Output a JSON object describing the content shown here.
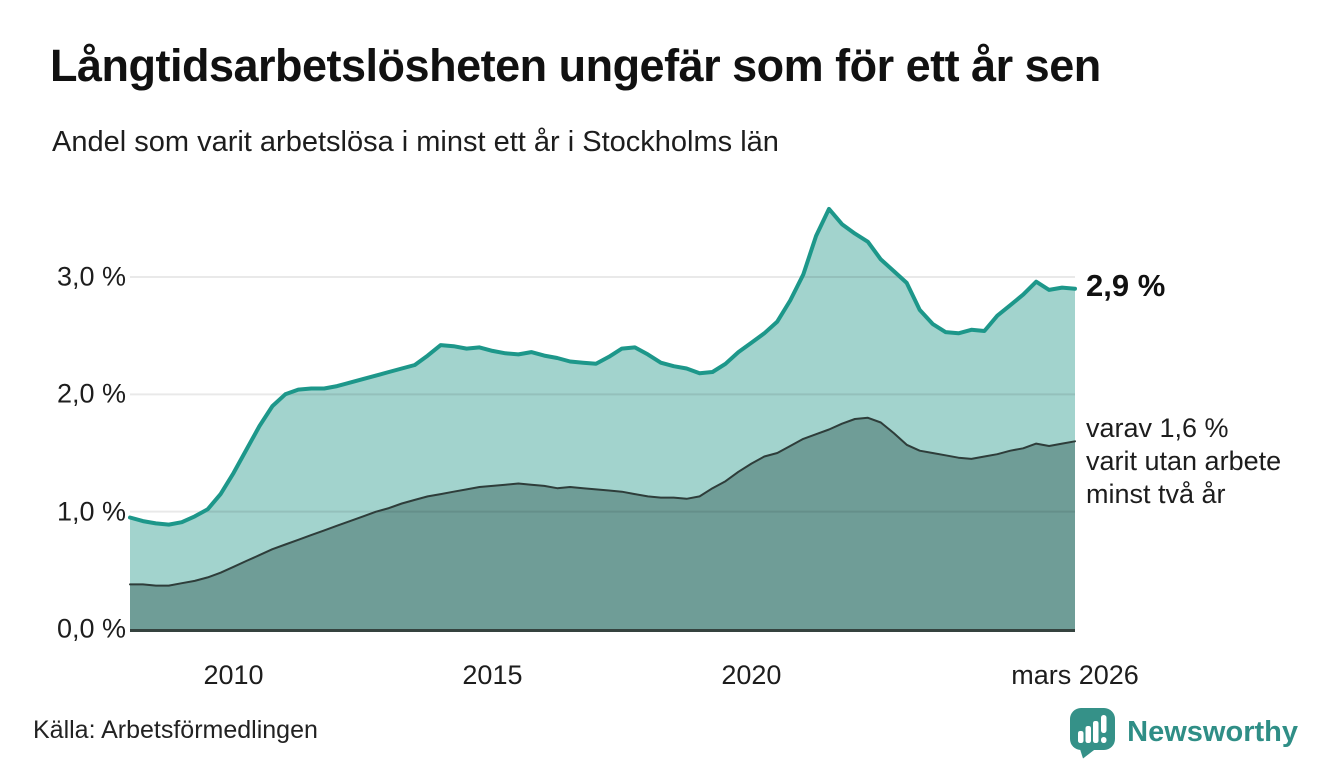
{
  "header": {
    "title": "Långtidsarbetslösheten ungefär som för ett år sen",
    "subtitle": "Andel som varit arbetslösa i minst ett år i Stockholms län"
  },
  "annotations": {
    "end_total": "2,9 %",
    "end_subset": "varav 1,6 %\nvarit utan arbete\nminst två år"
  },
  "footer": {
    "source": "Källa: Arbetsförmedlingen",
    "brand": "Newsworthy"
  },
  "colors": {
    "line_teal": "#1d978a",
    "fill_light": "#a2d3cd",
    "fill_dark": "#6f9d97",
    "stroke_dark": "#2e3d3a",
    "baseline": "#35433f",
    "gridline": "rgba(0,0,0,0.085)",
    "brand_teal": "#359188"
  },
  "chart_data": {
    "type": "area",
    "title": "Långtidsarbetslösheten ungefär som för ett år sen",
    "subtitle": "Andel som varit arbetslösa i minst ett år i Stockholms län",
    "xlabel": "",
    "ylabel": "",
    "xlim": [
      2008.0,
      2026.25
    ],
    "ylim": [
      0,
      3.7
    ],
    "grid": true,
    "legend_position": "none",
    "x": [
      2008.0,
      2008.25,
      2008.5,
      2008.75,
      2009.0,
      2009.25,
      2009.5,
      2009.75,
      2010.0,
      2010.25,
      2010.5,
      2010.75,
      2011.0,
      2011.25,
      2011.5,
      2011.75,
      2012.0,
      2012.25,
      2012.5,
      2012.75,
      2013.0,
      2013.25,
      2013.5,
      2013.75,
      2014.0,
      2014.25,
      2014.5,
      2014.75,
      2015.0,
      2015.25,
      2015.5,
      2015.75,
      2016.0,
      2016.25,
      2016.5,
      2016.75,
      2017.0,
      2017.25,
      2017.5,
      2017.75,
      2018.0,
      2018.25,
      2018.5,
      2018.75,
      2019.0,
      2019.25,
      2019.5,
      2019.75,
      2020.0,
      2020.25,
      2020.5,
      2020.75,
      2021.0,
      2021.25,
      2021.5,
      2021.75,
      2022.0,
      2022.25,
      2022.5,
      2022.75,
      2023.0,
      2023.25,
      2023.5,
      2023.75,
      2024.0,
      2024.25,
      2024.5,
      2024.75,
      2025.0,
      2025.25,
      2025.5,
      2025.75,
      2026.0,
      2026.25
    ],
    "series": [
      {
        "name": "arbetslösa minst ett år",
        "end_label": "2,9 %",
        "line_color": "#1d978a",
        "fill_color": "#a2d3cd",
        "line_width": 4,
        "values": [
          0.95,
          0.92,
          0.9,
          0.89,
          0.91,
          0.96,
          1.02,
          1.15,
          1.33,
          1.53,
          1.73,
          1.9,
          2.0,
          2.04,
          2.05,
          2.05,
          2.07,
          2.1,
          2.13,
          2.16,
          2.19,
          2.22,
          2.25,
          2.33,
          2.42,
          2.41,
          2.39,
          2.4,
          2.37,
          2.35,
          2.34,
          2.36,
          2.33,
          2.31,
          2.28,
          2.27,
          2.26,
          2.32,
          2.39,
          2.4,
          2.34,
          2.27,
          2.24,
          2.22,
          2.18,
          2.19,
          2.26,
          2.36,
          2.44,
          2.52,
          2.62,
          2.8,
          3.02,
          3.35,
          3.58,
          3.45,
          3.37,
          3.3,
          3.15,
          3.05,
          2.95,
          2.72,
          2.6,
          2.53,
          2.52,
          2.55,
          2.54,
          2.67,
          2.76,
          2.85,
          2.96,
          2.89,
          2.91,
          2.9
        ]
      },
      {
        "name": "varav utan arbete minst två år",
        "end_label": "varav 1,6 %",
        "line_color": "#2e3d3a",
        "fill_color": "#6f9d97",
        "line_width": 2,
        "values": [
          0.38,
          0.38,
          0.37,
          0.37,
          0.39,
          0.41,
          0.44,
          0.48,
          0.53,
          0.58,
          0.63,
          0.68,
          0.72,
          0.76,
          0.8,
          0.84,
          0.88,
          0.92,
          0.96,
          1.0,
          1.03,
          1.07,
          1.1,
          1.13,
          1.15,
          1.17,
          1.19,
          1.21,
          1.22,
          1.23,
          1.24,
          1.23,
          1.22,
          1.2,
          1.21,
          1.2,
          1.19,
          1.18,
          1.17,
          1.15,
          1.13,
          1.12,
          1.12,
          1.11,
          1.13,
          1.2,
          1.26,
          1.34,
          1.41,
          1.47,
          1.5,
          1.56,
          1.62,
          1.66,
          1.7,
          1.75,
          1.79,
          1.8,
          1.76,
          1.67,
          1.57,
          1.52,
          1.5,
          1.48,
          1.46,
          1.45,
          1.47,
          1.49,
          1.52,
          1.54,
          1.58,
          1.56,
          1.58,
          1.6
        ]
      }
    ],
    "yticks": [
      {
        "label": "3,0 %",
        "value": 3
      },
      {
        "label": "2,0 %",
        "value": 2
      },
      {
        "label": "1,0 %",
        "value": 1
      },
      {
        "label": "0,0 %",
        "value": 0
      }
    ],
    "xticks": [
      {
        "label": "2010",
        "value": 2010
      },
      {
        "label": "2015",
        "value": 2015
      },
      {
        "label": "2020",
        "value": 2020
      },
      {
        "label": "mars 2026",
        "value": 2026.25
      }
    ]
  }
}
